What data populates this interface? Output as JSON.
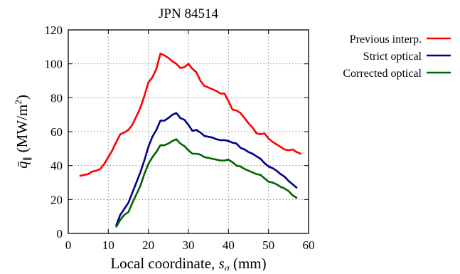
{
  "chart_data": {
    "type": "line",
    "title": "JPN 84514",
    "xlabel": "Local coordinate, s_a (mm)",
    "xlabel_parts": {
      "prefix": "Local coordinate, ",
      "var": "s",
      "sub": "a",
      "suffix": " (mm)"
    },
    "ylabel": "q̄∥ (MW/m²)",
    "ylabel_parts": {
      "var": "q̄",
      "sub": "∥",
      "unit": "(MW/m",
      "sup": "2",
      "close": ")"
    },
    "xlim": [
      0,
      60
    ],
    "ylim": [
      0,
      120
    ],
    "xticks": [
      0,
      10,
      20,
      30,
      40,
      50,
      60
    ],
    "yticks": [
      0,
      20,
      40,
      60,
      80,
      100,
      120
    ],
    "grid": true,
    "legend_position": "outside-right",
    "series": [
      {
        "name": "Previous interp.",
        "color": "#ff0000",
        "x": [
          3,
          4,
          5,
          6,
          7,
          8,
          9,
          10,
          11,
          12,
          13,
          14,
          15,
          16,
          17,
          18,
          19,
          20,
          21,
          22,
          23,
          24,
          25,
          26,
          27,
          28,
          29,
          30,
          31,
          32,
          33,
          34,
          35,
          36,
          37,
          38,
          39,
          40,
          41,
          42,
          43,
          44,
          45,
          46,
          47,
          48,
          49,
          50,
          51,
          52,
          53,
          54,
          55,
          56,
          57,
          58
        ],
        "values": [
          34,
          34.5,
          35,
          36.5,
          37,
          38,
          41,
          45,
          49,
          54,
          58.5,
          59.5,
          61,
          64,
          69,
          74,
          81,
          89,
          92,
          97,
          106,
          105,
          103.5,
          101.5,
          100,
          97.5,
          98,
          100,
          97,
          95,
          90,
          87,
          86,
          85,
          84,
          82.5,
          82.5,
          78,
          73,
          72.5,
          71,
          68,
          65,
          62.5,
          59,
          58.5,
          59,
          56,
          54,
          52.5,
          51,
          49.5,
          49,
          49.5,
          48,
          47
        ]
      },
      {
        "name": "Strict optical",
        "color": "#00008b",
        "x": [
          12,
          13,
          14,
          15,
          16,
          17,
          18,
          19,
          20,
          21,
          22,
          23,
          24,
          25,
          26,
          27,
          28,
          29,
          30,
          31,
          32,
          33,
          34,
          35,
          36,
          37,
          38,
          39,
          40,
          41,
          42,
          43,
          44,
          45,
          46,
          47,
          48,
          49,
          50,
          51,
          52,
          53,
          54,
          55,
          56,
          57
        ],
        "values": [
          5,
          11,
          14.5,
          18,
          24,
          30,
          36,
          43,
          51,
          57,
          61,
          66.5,
          66.5,
          68,
          70,
          71,
          68,
          67,
          64,
          60.5,
          61,
          59.5,
          57.5,
          57,
          56.5,
          55.5,
          55,
          55,
          54.5,
          53.5,
          53,
          50.5,
          49.5,
          48,
          47,
          45.5,
          44,
          41.5,
          39.5,
          38.5,
          37,
          35,
          33.5,
          31,
          29,
          27
        ]
      },
      {
        "name": "Corrected optical",
        "color": "#006400",
        "x": [
          12,
          13,
          14,
          15,
          16,
          17,
          18,
          19,
          20,
          21,
          22,
          23,
          24,
          25,
          26,
          27,
          28,
          29,
          30,
          31,
          32,
          33,
          34,
          35,
          36,
          37,
          38,
          39,
          40,
          41,
          42,
          43,
          44,
          45,
          46,
          47,
          48,
          49,
          50,
          51,
          52,
          53,
          54,
          55,
          56,
          57
        ],
        "values": [
          4,
          8,
          11,
          12.5,
          18,
          23,
          28,
          35,
          41,
          45,
          48,
          52,
          52,
          53,
          54.5,
          55.5,
          53,
          51.5,
          49,
          47,
          47,
          46.5,
          45,
          44.5,
          44,
          43.5,
          43,
          43,
          43.5,
          42,
          40,
          39.5,
          38,
          37,
          36,
          35,
          34.5,
          32.5,
          30.5,
          30,
          29,
          27.5,
          26.5,
          25,
          22.5,
          21
        ]
      }
    ]
  }
}
